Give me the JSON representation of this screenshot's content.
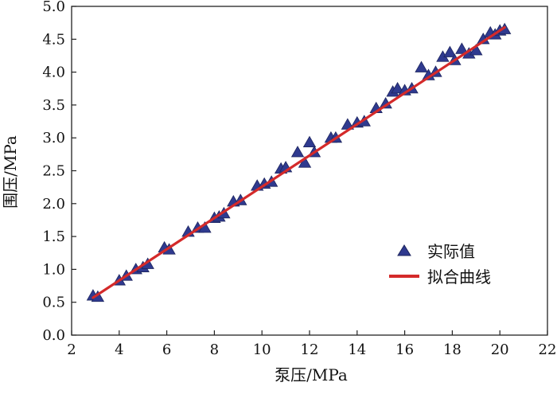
{
  "chart_data": {
    "type": "scatter",
    "xlabel": "泵压/MPa",
    "ylabel": "围压/MPa",
    "xlim": [
      2,
      22
    ],
    "ylim": [
      0.0,
      5.0
    ],
    "x_ticks": [
      "2",
      "4",
      "6",
      "8",
      "10",
      "12",
      "14",
      "16",
      "18",
      "20",
      "22"
    ],
    "y_ticks": [
      "0.0",
      "0.5",
      "1.0",
      "1.5",
      "2.0",
      "2.5",
      "3.0",
      "3.5",
      "4.0",
      "4.5",
      "5.0"
    ],
    "grid": false,
    "legend_position": "right",
    "series": [
      {
        "name": "实际值",
        "marker": "triangle",
        "color": "#2f3a8f",
        "points": [
          [
            2.9,
            0.6
          ],
          [
            3.1,
            0.58
          ],
          [
            4.0,
            0.83
          ],
          [
            4.3,
            0.9
          ],
          [
            4.7,
            1.0
          ],
          [
            5.0,
            1.03
          ],
          [
            5.2,
            1.08
          ],
          [
            5.9,
            1.33
          ],
          [
            6.1,
            1.3
          ],
          [
            6.9,
            1.57
          ],
          [
            7.3,
            1.63
          ],
          [
            7.6,
            1.63
          ],
          [
            8.0,
            1.78
          ],
          [
            8.2,
            1.8
          ],
          [
            8.4,
            1.85
          ],
          [
            8.8,
            2.03
          ],
          [
            9.1,
            2.05
          ],
          [
            9.8,
            2.27
          ],
          [
            10.1,
            2.3
          ],
          [
            10.4,
            2.33
          ],
          [
            10.8,
            2.53
          ],
          [
            11.0,
            2.55
          ],
          [
            11.5,
            2.78
          ],
          [
            11.8,
            2.62
          ],
          [
            12.0,
            2.93
          ],
          [
            12.2,
            2.78
          ],
          [
            12.9,
            3.0
          ],
          [
            13.1,
            3.0
          ],
          [
            13.6,
            3.2
          ],
          [
            14.0,
            3.23
          ],
          [
            14.3,
            3.25
          ],
          [
            14.8,
            3.45
          ],
          [
            15.2,
            3.52
          ],
          [
            15.5,
            3.7
          ],
          [
            15.7,
            3.75
          ],
          [
            16.0,
            3.72
          ],
          [
            16.3,
            3.75
          ],
          [
            16.7,
            4.07
          ],
          [
            17.0,
            3.95
          ],
          [
            17.3,
            4.0
          ],
          [
            17.6,
            4.23
          ],
          [
            17.9,
            4.3
          ],
          [
            18.1,
            4.18
          ],
          [
            18.4,
            4.35
          ],
          [
            18.7,
            4.28
          ],
          [
            19.0,
            4.33
          ],
          [
            19.3,
            4.5
          ],
          [
            19.6,
            4.6
          ],
          [
            19.8,
            4.57
          ],
          [
            20.0,
            4.63
          ],
          [
            20.2,
            4.65
          ]
        ]
      },
      {
        "name": "拟合曲线",
        "type": "line",
        "color": "#d42a2a",
        "points": [
          [
            2.9,
            0.57
          ],
          [
            20.2,
            4.68
          ]
        ]
      }
    ]
  }
}
